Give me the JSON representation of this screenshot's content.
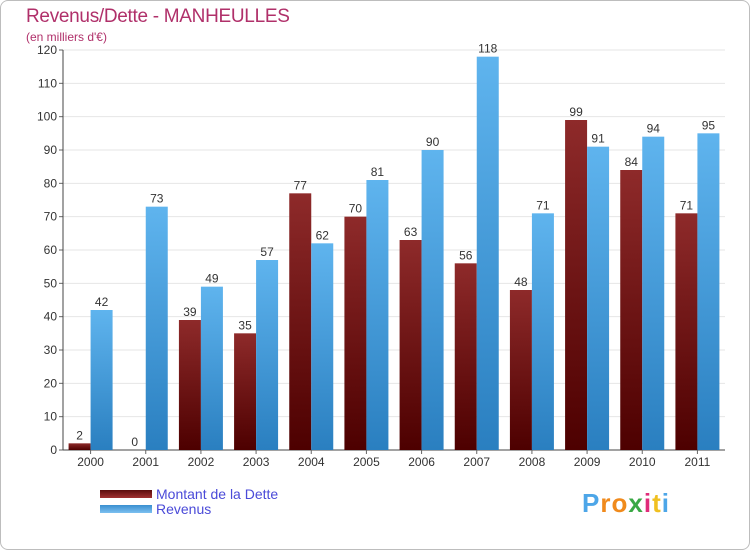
{
  "chart_data": {
    "type": "bar",
    "title": "Revenus/Dette - MANHEULLES",
    "subtitle": "(en milliers d'€)",
    "categories": [
      "2000",
      "2001",
      "2002",
      "2003",
      "2004",
      "2005",
      "2006",
      "2007",
      "2008",
      "2009",
      "2010",
      "2011"
    ],
    "series": [
      {
        "name": "Montant de la Dette",
        "color": "#7a1a1a",
        "values": [
          2,
          0,
          39,
          35,
          77,
          70,
          63,
          56,
          48,
          99,
          84,
          71
        ]
      },
      {
        "name": "Revenus",
        "color": "#4da6e8",
        "values": [
          42,
          73,
          49,
          57,
          62,
          81,
          90,
          118,
          71,
          91,
          94,
          95
        ]
      }
    ],
    "ylim": [
      0,
      120
    ],
    "yticks": [
      0,
      10,
      20,
      30,
      40,
      50,
      60,
      70,
      80,
      90,
      100,
      110,
      120
    ],
    "grid": true,
    "legend": "bottom-left"
  },
  "logo": {
    "text": "Proxiti"
  }
}
